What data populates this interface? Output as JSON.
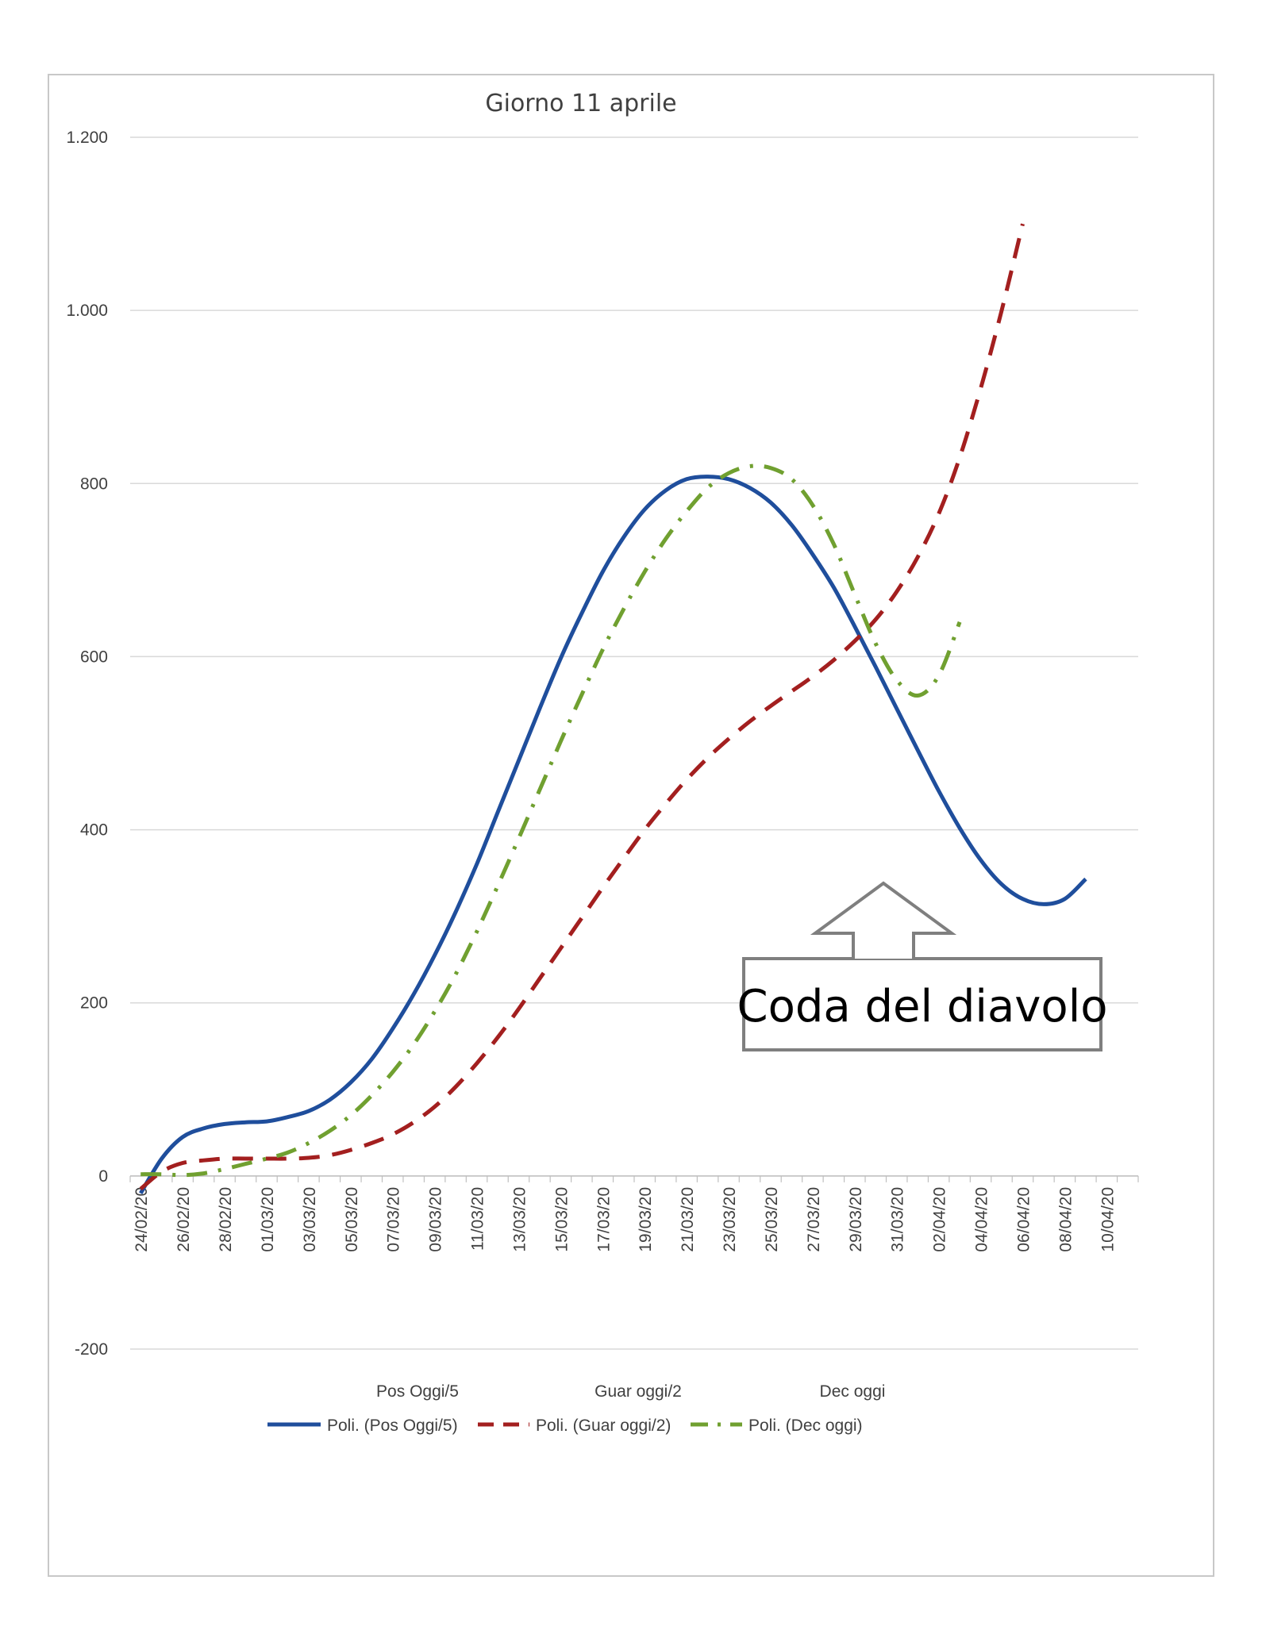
{
  "chart_data": {
    "type": "line",
    "title": "Giorno 11 aprile",
    "xlabel": "",
    "ylabel": "",
    "ylim": [
      -200,
      1200
    ],
    "yticks": [
      -200,
      0,
      200,
      400,
      600,
      800,
      1000,
      1200
    ],
    "ytick_labels": [
      "-200",
      "0",
      "200",
      "400",
      "600",
      "800",
      "1.000",
      "1.200"
    ],
    "x_start": "24/02/20",
    "x_end": "11/04/20",
    "x_tick_labels": [
      "24/02/20",
      "26/02/20",
      "28/02/20",
      "01/03/20",
      "03/03/20",
      "05/03/20",
      "07/03/20",
      "09/03/20",
      "11/03/20",
      "13/03/20",
      "15/03/20",
      "17/03/20",
      "19/03/20",
      "21/03/20",
      "23/03/20",
      "25/03/20",
      "27/03/20",
      "29/03/20",
      "31/03/20",
      "02/04/20",
      "04/04/20",
      "06/04/20",
      "08/04/20",
      "10/04/20"
    ],
    "grid": true,
    "legend_position": "bottom",
    "legend_hidden_series": [
      "Pos Oggi/5",
      "Guar oggi/2",
      "Dec oggi"
    ],
    "series": [
      {
        "name": "Poli. (Pos Oggi/5)",
        "color": "#1f4e9c",
        "dash": "solid",
        "points": [
          [
            "24/02/20",
            -20
          ],
          [
            "25/02/20",
            20
          ],
          [
            "26/02/20",
            45
          ],
          [
            "27/02/20",
            55
          ],
          [
            "28/02/20",
            60
          ],
          [
            "29/02/20",
            62
          ],
          [
            "01/03/20",
            63
          ],
          [
            "02/03/20",
            68
          ],
          [
            "03/03/20",
            75
          ],
          [
            "04/03/20",
            88
          ],
          [
            "05/03/20",
            108
          ],
          [
            "06/03/20",
            135
          ],
          [
            "07/03/20",
            170
          ],
          [
            "08/03/20",
            210
          ],
          [
            "09/03/20",
            255
          ],
          [
            "10/03/20",
            305
          ],
          [
            "11/03/20",
            360
          ],
          [
            "12/03/20",
            420
          ],
          [
            "13/03/20",
            480
          ],
          [
            "14/03/20",
            540
          ],
          [
            "15/03/20",
            598
          ],
          [
            "16/03/20",
            650
          ],
          [
            "17/03/20",
            698
          ],
          [
            "18/03/20",
            738
          ],
          [
            "19/03/20",
            770
          ],
          [
            "20/03/20",
            792
          ],
          [
            "21/03/20",
            805
          ],
          [
            "22/03/20",
            808
          ],
          [
            "23/03/20",
            805
          ],
          [
            "24/03/20",
            795
          ],
          [
            "25/03/20",
            778
          ],
          [
            "26/03/20",
            752
          ],
          [
            "27/03/20",
            718
          ],
          [
            "28/03/20",
            680
          ],
          [
            "29/03/20",
            635
          ],
          [
            "30/03/20",
            588
          ],
          [
            "31/03/20",
            540
          ],
          [
            "01/04/20",
            492
          ],
          [
            "02/04/20",
            445
          ],
          [
            "03/04/20",
            402
          ],
          [
            "04/04/20",
            365
          ],
          [
            "05/04/20",
            337
          ],
          [
            "06/04/20",
            320
          ],
          [
            "07/04/20",
            314
          ],
          [
            "08/04/20",
            320
          ],
          [
            "09/04/20",
            343
          ]
        ]
      },
      {
        "name": "Poli. (Guar oggi/2)",
        "color": "#a31f1f",
        "dash": "dash",
        "points": [
          [
            "24/02/20",
            -15
          ],
          [
            "25/02/20",
            5
          ],
          [
            "26/02/20",
            15
          ],
          [
            "27/02/20",
            18
          ],
          [
            "28/02/20",
            20
          ],
          [
            "29/02/20",
            20
          ],
          [
            "01/03/20",
            20
          ],
          [
            "02/03/20",
            20
          ],
          [
            "03/03/20",
            21
          ],
          [
            "04/03/20",
            24
          ],
          [
            "05/03/20",
            30
          ],
          [
            "06/03/20",
            38
          ],
          [
            "07/03/20",
            48
          ],
          [
            "08/03/20",
            62
          ],
          [
            "09/03/20",
            80
          ],
          [
            "10/03/20",
            103
          ],
          [
            "11/03/20",
            130
          ],
          [
            "12/03/20",
            160
          ],
          [
            "13/03/20",
            193
          ],
          [
            "14/03/20",
            228
          ],
          [
            "15/03/20",
            263
          ],
          [
            "16/03/20",
            298
          ],
          [
            "17/03/20",
            333
          ],
          [
            "18/03/20",
            367
          ],
          [
            "19/03/20",
            400
          ],
          [
            "20/03/20",
            430
          ],
          [
            "21/03/20",
            458
          ],
          [
            "22/03/20",
            483
          ],
          [
            "23/03/20",
            505
          ],
          [
            "24/03/20",
            525
          ],
          [
            "25/03/20",
            543
          ],
          [
            "26/03/20",
            560
          ],
          [
            "27/03/20",
            577
          ],
          [
            "28/03/20",
            596
          ],
          [
            "29/03/20",
            618
          ],
          [
            "30/03/20",
            643
          ],
          [
            "31/03/20",
            675
          ],
          [
            "01/04/20",
            715
          ],
          [
            "02/04/20",
            765
          ],
          [
            "03/04/20",
            830
          ],
          [
            "04/04/20",
            910
          ],
          [
            "05/04/20",
            1000
          ],
          [
            "06/04/20",
            1100
          ]
        ]
      },
      {
        "name": "Poli. (Dec oggi)",
        "color": "#70a030",
        "dash": "dashdot",
        "points": [
          [
            "24/02/20",
            2
          ],
          [
            "25/02/20",
            2
          ],
          [
            "26/02/20",
            1
          ],
          [
            "27/02/20",
            3
          ],
          [
            "28/02/20",
            8
          ],
          [
            "29/02/20",
            14
          ],
          [
            "01/03/20",
            20
          ],
          [
            "02/03/20",
            27
          ],
          [
            "03/03/20",
            38
          ],
          [
            "04/03/20",
            52
          ],
          [
            "05/03/20",
            70
          ],
          [
            "06/03/20",
            93
          ],
          [
            "07/03/20",
            120
          ],
          [
            "08/03/20",
            152
          ],
          [
            "09/03/20",
            190
          ],
          [
            "10/03/20",
            233
          ],
          [
            "11/03/20",
            282
          ],
          [
            "12/03/20",
            335
          ],
          [
            "13/03/20",
            390
          ],
          [
            "14/03/20",
            446
          ],
          [
            "15/03/20",
            502
          ],
          [
            "16/03/20",
            556
          ],
          [
            "17/03/20",
            608
          ],
          [
            "18/03/20",
            655
          ],
          [
            "19/03/20",
            698
          ],
          [
            "20/03/20",
            736
          ],
          [
            "21/03/20",
            768
          ],
          [
            "22/03/20",
            795
          ],
          [
            "23/03/20",
            812
          ],
          [
            "24/03/20",
            820
          ],
          [
            "25/03/20",
            818
          ],
          [
            "26/03/20",
            805
          ],
          [
            "27/03/20",
            775
          ],
          [
            "28/03/20",
            730
          ],
          [
            "29/03/20",
            672
          ],
          [
            "30/03/20",
            615
          ],
          [
            "31/03/20",
            573
          ],
          [
            "01/04/20",
            555
          ],
          [
            "02/04/20",
            578
          ],
          [
            "03/04/20",
            640
          ]
        ]
      }
    ]
  },
  "annotation": {
    "text": "Coda del diavolo",
    "shape": "callout-arrow-up",
    "points_to": "Poli. (Pos Oggi/5) minimum",
    "border_color": "#7f7f7f"
  }
}
